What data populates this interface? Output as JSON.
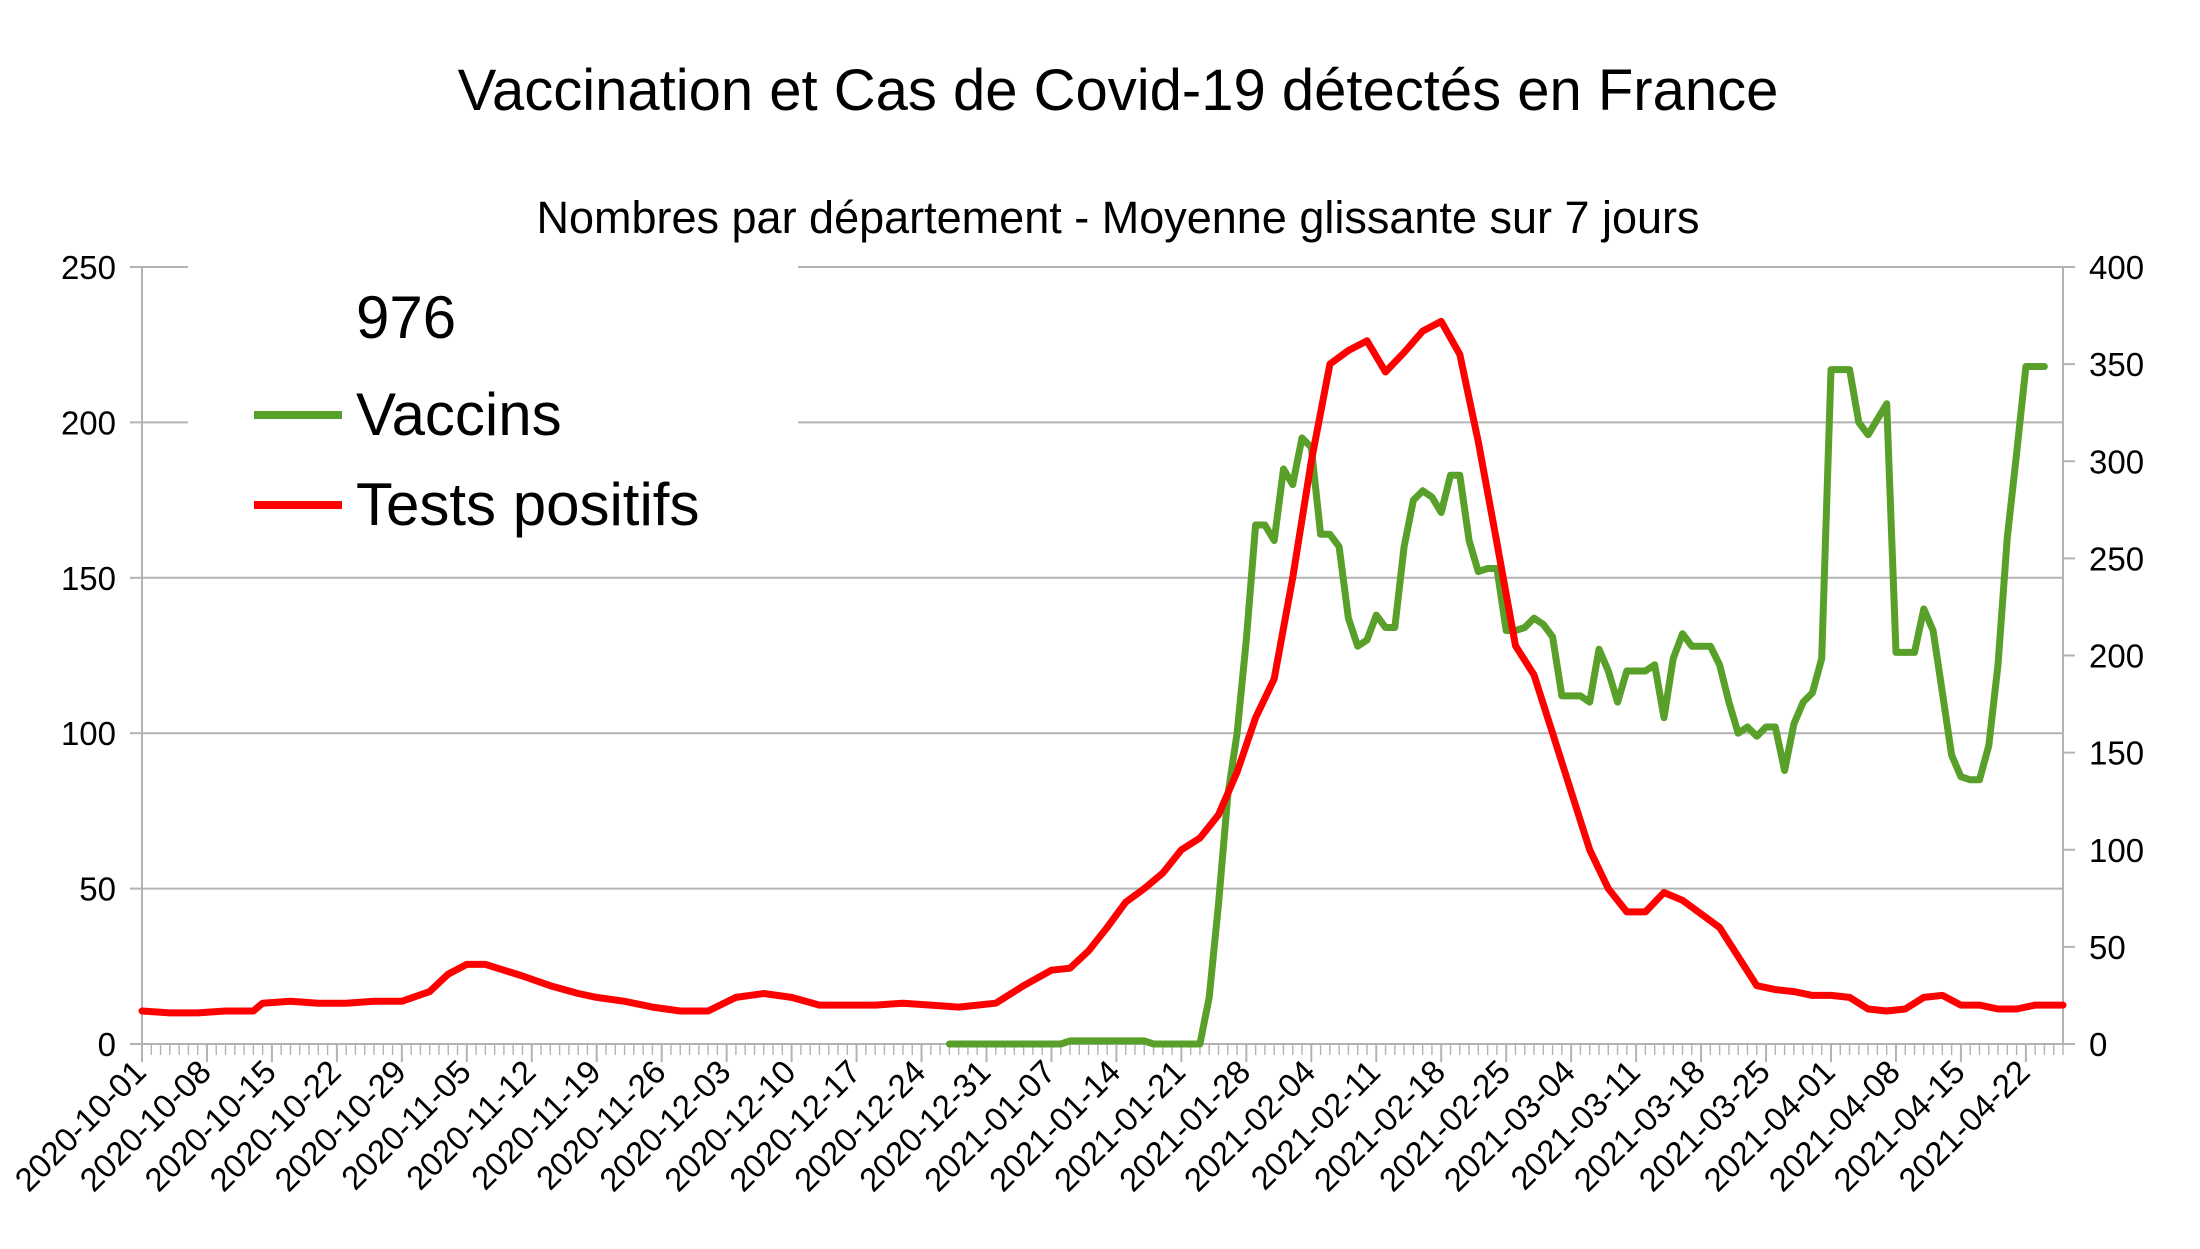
{
  "chart_data": {
    "type": "line",
    "title": "Vaccination et Cas de Covid-19 détectés en France",
    "subtitle": "Nombres par département - Moyenne glissante sur 7 jours",
    "legend_title": "976",
    "legend_position": "top-left",
    "grid": true,
    "x_start": "2020-10-01",
    "x_end": "2021-04-26",
    "x_tick_labels": [
      "2020-10-01",
      "2020-10-08",
      "2020-10-15",
      "2020-10-22",
      "2020-10-29",
      "2020-11-05",
      "2020-11-12",
      "2020-11-19",
      "2020-11-26",
      "2020-12-03",
      "2020-12-10",
      "2020-12-17",
      "2020-12-24",
      "2020-12-31",
      "2021-01-07",
      "2021-01-14",
      "2021-01-21",
      "2021-01-28",
      "2021-02-04",
      "2021-02-11",
      "2021-02-18",
      "2021-02-25",
      "2021-03-04",
      "2021-03-11",
      "2021-03-18",
      "2021-03-25",
      "2021-04-01",
      "2021-04-08",
      "2021-04-15",
      "2021-04-22"
    ],
    "y_left": {
      "min": 0,
      "max": 250,
      "ticks": [
        0,
        50,
        100,
        150,
        200,
        250
      ]
    },
    "y_right": {
      "min": 0,
      "max": 400,
      "ticks": [
        0,
        50,
        100,
        150,
        200,
        250,
        300,
        350,
        400
      ]
    },
    "series": [
      {
        "name": "Vaccins",
        "color": "#59a02a",
        "axis": "left",
        "points": [
          [
            "2020-12-27",
            0
          ],
          [
            "2021-01-08",
            0
          ],
          [
            "2021-01-09",
            1
          ],
          [
            "2021-01-17",
            1
          ],
          [
            "2021-01-18",
            0
          ],
          [
            "2021-01-23",
            0
          ],
          [
            "2021-01-24",
            15
          ],
          [
            "2021-01-25",
            45
          ],
          [
            "2021-01-26",
            80
          ],
          [
            "2021-01-27",
            100
          ],
          [
            "2021-01-28",
            130
          ],
          [
            "2021-01-29",
            167
          ],
          [
            "2021-01-30",
            167
          ],
          [
            "2021-01-31",
            162
          ],
          [
            "2021-02-01",
            185
          ],
          [
            "2021-02-02",
            180
          ],
          [
            "2021-02-03",
            195
          ],
          [
            "2021-02-04",
            192
          ],
          [
            "2021-02-05",
            164
          ],
          [
            "2021-02-06",
            164
          ],
          [
            "2021-02-07",
            160
          ],
          [
            "2021-02-08",
            137
          ],
          [
            "2021-02-09",
            128
          ],
          [
            "2021-02-10",
            130
          ],
          [
            "2021-02-11",
            138
          ],
          [
            "2021-02-12",
            134
          ],
          [
            "2021-02-13",
            134
          ],
          [
            "2021-02-14",
            160
          ],
          [
            "2021-02-15",
            175
          ],
          [
            "2021-02-16",
            178
          ],
          [
            "2021-02-17",
            176
          ],
          [
            "2021-02-18",
            171
          ],
          [
            "2021-02-19",
            183
          ],
          [
            "2021-02-20",
            183
          ],
          [
            "2021-02-21",
            162
          ],
          [
            "2021-02-22",
            152
          ],
          [
            "2021-02-23",
            153
          ],
          [
            "2021-02-24",
            153
          ],
          [
            "2021-02-25",
            133
          ],
          [
            "2021-02-26",
            133
          ],
          [
            "2021-02-27",
            134
          ],
          [
            "2021-02-28",
            137
          ],
          [
            "2021-03-01",
            135
          ],
          [
            "2021-03-02",
            131
          ],
          [
            "2021-03-03",
            112
          ],
          [
            "2021-03-04",
            112
          ],
          [
            "2021-03-05",
            112
          ],
          [
            "2021-03-06",
            110
          ],
          [
            "2021-03-07",
            127
          ],
          [
            "2021-03-08",
            120
          ],
          [
            "2021-03-09",
            110
          ],
          [
            "2021-03-10",
            120
          ],
          [
            "2021-03-11",
            120
          ],
          [
            "2021-03-12",
            120
          ],
          [
            "2021-03-13",
            122
          ],
          [
            "2021-03-14",
            105
          ],
          [
            "2021-03-15",
            124
          ],
          [
            "2021-03-16",
            132
          ],
          [
            "2021-03-17",
            128
          ],
          [
            "2021-03-18",
            128
          ],
          [
            "2021-03-19",
            128
          ],
          [
            "2021-03-20",
            122
          ],
          [
            "2021-03-21",
            110
          ],
          [
            "2021-03-22",
            100
          ],
          [
            "2021-03-23",
            102
          ],
          [
            "2021-03-24",
            99
          ],
          [
            "2021-03-25",
            102
          ],
          [
            "2021-03-26",
            102
          ],
          [
            "2021-03-27",
            88
          ],
          [
            "2021-03-28",
            103
          ],
          [
            "2021-03-29",
            110
          ],
          [
            "2021-03-30",
            113
          ],
          [
            "2021-03-31",
            124
          ],
          [
            "2021-04-01",
            217
          ],
          [
            "2021-04-02",
            217
          ],
          [
            "2021-04-03",
            217
          ],
          [
            "2021-04-04",
            200
          ],
          [
            "2021-04-05",
            196
          ],
          [
            "2021-04-06",
            201
          ],
          [
            "2021-04-07",
            206
          ],
          [
            "2021-04-08",
            126
          ],
          [
            "2021-04-09",
            126
          ],
          [
            "2021-04-10",
            126
          ],
          [
            "2021-04-11",
            140
          ],
          [
            "2021-04-12",
            133
          ],
          [
            "2021-04-13",
            113
          ],
          [
            "2021-04-14",
            93
          ],
          [
            "2021-04-15",
            86
          ],
          [
            "2021-04-16",
            85
          ],
          [
            "2021-04-17",
            85
          ],
          [
            "2021-04-18",
            96
          ],
          [
            "2021-04-19",
            122
          ],
          [
            "2021-04-20",
            163
          ],
          [
            "2021-04-21",
            190
          ],
          [
            "2021-04-22",
            218
          ],
          [
            "2021-04-23",
            218
          ],
          [
            "2021-04-24",
            218
          ]
        ]
      },
      {
        "name": "Tests positifs",
        "color": "#ff0000",
        "axis": "right",
        "points": [
          [
            "2020-10-01",
            17
          ],
          [
            "2020-10-04",
            16
          ],
          [
            "2020-10-07",
            16
          ],
          [
            "2020-10-10",
            17
          ],
          [
            "2020-10-13",
            17
          ],
          [
            "2020-10-14",
            21
          ],
          [
            "2020-10-17",
            22
          ],
          [
            "2020-10-20",
            21
          ],
          [
            "2020-10-23",
            21
          ],
          [
            "2020-10-26",
            22
          ],
          [
            "2020-10-29",
            22
          ],
          [
            "2020-11-01",
            27
          ],
          [
            "2020-11-03",
            36
          ],
          [
            "2020-11-05",
            41
          ],
          [
            "2020-11-07",
            41
          ],
          [
            "2020-11-09",
            38
          ],
          [
            "2020-11-11",
            35
          ],
          [
            "2020-11-14",
            30
          ],
          [
            "2020-11-17",
            26
          ],
          [
            "2020-11-19",
            24
          ],
          [
            "2020-11-22",
            22
          ],
          [
            "2020-11-25",
            19
          ],
          [
            "2020-11-28",
            17
          ],
          [
            "2020-12-01",
            17
          ],
          [
            "2020-12-04",
            24
          ],
          [
            "2020-12-07",
            26
          ],
          [
            "2020-12-10",
            24
          ],
          [
            "2020-12-13",
            20
          ],
          [
            "2020-12-16",
            20
          ],
          [
            "2020-12-19",
            20
          ],
          [
            "2020-12-22",
            21
          ],
          [
            "2020-12-25",
            20
          ],
          [
            "2020-12-28",
            19
          ],
          [
            "2021-01-01",
            21
          ],
          [
            "2021-01-04",
            30
          ],
          [
            "2021-01-07",
            38
          ],
          [
            "2021-01-09",
            39
          ],
          [
            "2021-01-11",
            48
          ],
          [
            "2021-01-13",
            60
          ],
          [
            "2021-01-15",
            73
          ],
          [
            "2021-01-17",
            80
          ],
          [
            "2021-01-19",
            88
          ],
          [
            "2021-01-21",
            100
          ],
          [
            "2021-01-23",
            106
          ],
          [
            "2021-01-25",
            118
          ],
          [
            "2021-01-27",
            140
          ],
          [
            "2021-01-29",
            168
          ],
          [
            "2021-01-31",
            188
          ],
          [
            "2021-02-02",
            240
          ],
          [
            "2021-02-04",
            300
          ],
          [
            "2021-02-06",
            350
          ],
          [
            "2021-02-08",
            357
          ],
          [
            "2021-02-10",
            362
          ],
          [
            "2021-02-12",
            346
          ],
          [
            "2021-02-14",
            356
          ],
          [
            "2021-02-16",
            367
          ],
          [
            "2021-02-18",
            372
          ],
          [
            "2021-02-20",
            355
          ],
          [
            "2021-02-22",
            310
          ],
          [
            "2021-02-24",
            258
          ],
          [
            "2021-02-26",
            205
          ],
          [
            "2021-02-28",
            190
          ],
          [
            "2021-03-02",
            160
          ],
          [
            "2021-03-04",
            130
          ],
          [
            "2021-03-06",
            100
          ],
          [
            "2021-03-08",
            80
          ],
          [
            "2021-03-10",
            68
          ],
          [
            "2021-03-12",
            68
          ],
          [
            "2021-03-14",
            78
          ],
          [
            "2021-03-16",
            74
          ],
          [
            "2021-03-18",
            67
          ],
          [
            "2021-03-20",
            60
          ],
          [
            "2021-03-22",
            45
          ],
          [
            "2021-03-24",
            30
          ],
          [
            "2021-03-26",
            28
          ],
          [
            "2021-03-28",
            27
          ],
          [
            "2021-03-30",
            25
          ],
          [
            "2021-04-01",
            25
          ],
          [
            "2021-04-03",
            24
          ],
          [
            "2021-04-05",
            18
          ],
          [
            "2021-04-07",
            17
          ],
          [
            "2021-04-09",
            18
          ],
          [
            "2021-04-11",
            24
          ],
          [
            "2021-04-13",
            25
          ],
          [
            "2021-04-15",
            20
          ],
          [
            "2021-04-17",
            20
          ],
          [
            "2021-04-19",
            18
          ],
          [
            "2021-04-21",
            18
          ],
          [
            "2021-04-23",
            20
          ],
          [
            "2021-04-26",
            20
          ]
        ]
      }
    ]
  }
}
